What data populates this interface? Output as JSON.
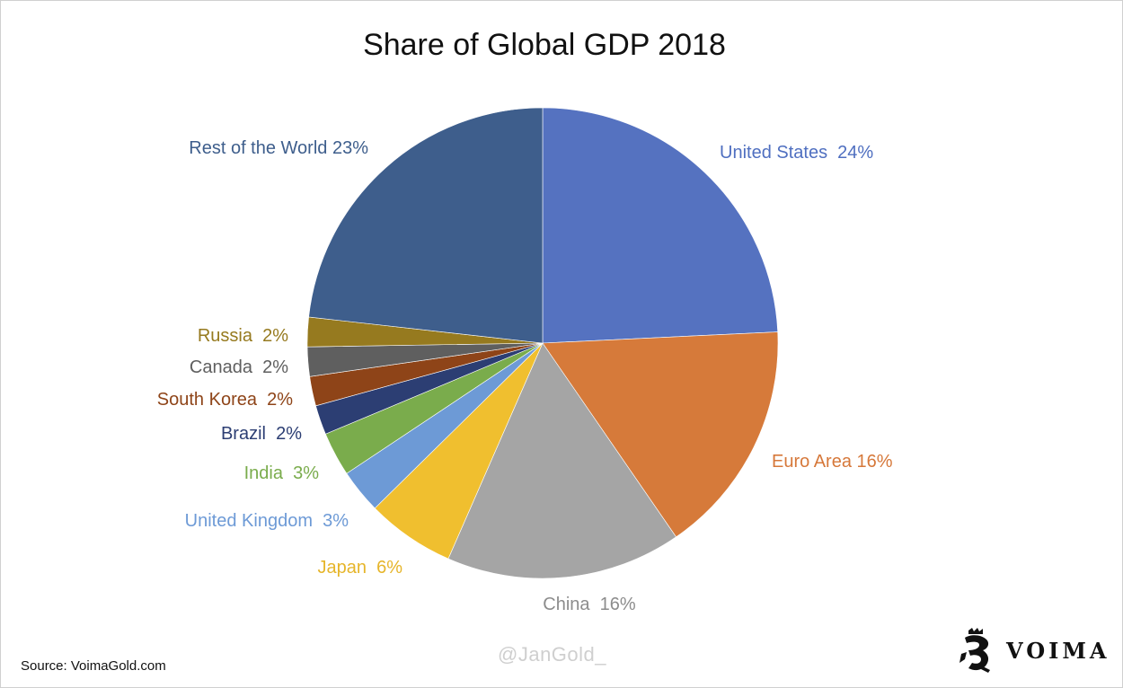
{
  "chart_data": {
    "type": "pie",
    "title": "Share of Global GDP 2018",
    "start_angle_deg": 0,
    "direction": "clockwise",
    "slices": [
      {
        "label": "United States",
        "display_label": "United States  24%",
        "value": 24,
        "color": "#5572c0",
        "label_color": "#4f6fc0"
      },
      {
        "label": "Euro Area",
        "display_label": "Euro Area 16%",
        "value": 16,
        "color": "#d67a3a",
        "label_color": "#d6783a"
      },
      {
        "label": "China",
        "display_label": "China  16%",
        "value": 16,
        "color": "#a5a5a5",
        "label_color": "#8c8c8c"
      },
      {
        "label": "Japan",
        "display_label": "Japan  6%",
        "value": 6,
        "color": "#f0bf2f",
        "label_color": "#e6b52a"
      },
      {
        "label": "United Kingdom",
        "display_label": "United Kingdom  3%",
        "value": 3,
        "color": "#6d9ad6",
        "label_color": "#6d9ad6"
      },
      {
        "label": "India",
        "display_label": "India  3%",
        "value": 3,
        "color": "#7aac4c",
        "label_color": "#7aac4c"
      },
      {
        "label": "Brazil",
        "display_label": "Brazil  2%",
        "value": 2,
        "color": "#2c3e73",
        "label_color": "#2c3e73"
      },
      {
        "label": "South Korea",
        "display_label": "South Korea  2%",
        "value": 2,
        "color": "#8e4418",
        "label_color": "#8e4418"
      },
      {
        "label": "Canada",
        "display_label": "Canada  2%",
        "value": 2,
        "color": "#5f5f5f",
        "label_color": "#5f5f5f"
      },
      {
        "label": "Russia",
        "display_label": "Russia  2%",
        "value": 2,
        "color": "#967a1f",
        "label_color": "#967a1f"
      },
      {
        "label": "Rest of the World",
        "display_label": "Rest of the World 23%",
        "value": 23,
        "color": "#3e5e8c",
        "label_color": "#3e5e8c"
      }
    ]
  },
  "footer": {
    "source": "Source: VoimaGold.com",
    "watermark": "@JanGold_",
    "brand": "VOIMA",
    "logo_icon": "lion-crest-icon"
  }
}
